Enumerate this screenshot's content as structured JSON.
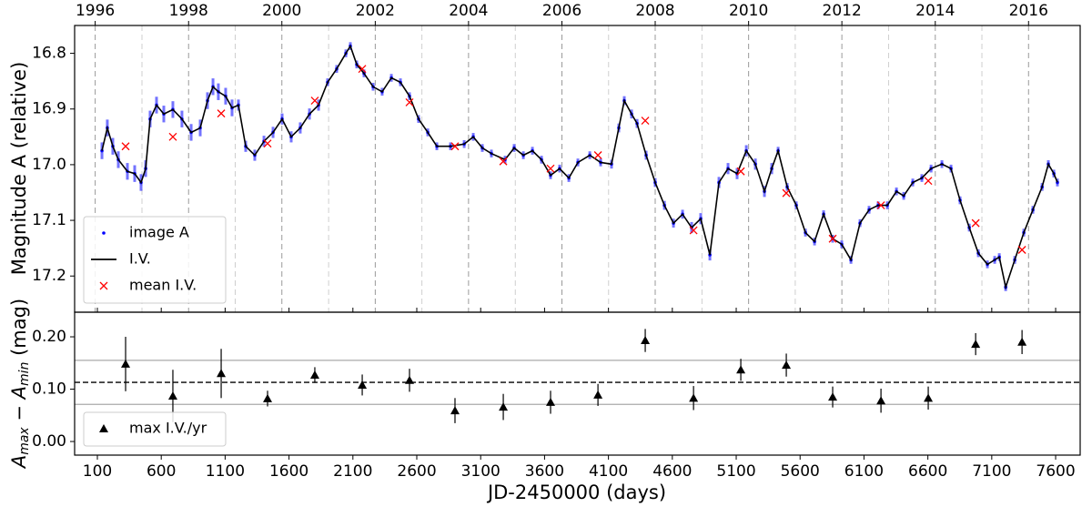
{
  "chart_data": [
    {
      "type": "line",
      "ylabel": "Magnitude A (relative)",
      "xlim": [
        -78,
        7792
      ],
      "ylim": [
        17.265,
        16.75
      ],
      "yticks": [
        16.8,
        16.9,
        {
          "value": 17.0,
          "label": "17.0"
        },
        17.1,
        17.2
      ],
      "x2ticks": [
        {
          "value": 83,
          "label": "1996"
        },
        {
          "value": 814,
          "label": "1998"
        },
        {
          "value": 1544,
          "label": "2000"
        },
        {
          "value": 2275,
          "label": "2002"
        },
        {
          "value": 3005,
          "label": "2004"
        },
        {
          "value": 3736,
          "label": "2006"
        },
        {
          "value": 4466,
          "label": "2008"
        },
        {
          "value": 5197,
          "label": "2010"
        },
        {
          "value": 5927,
          "label": "2012"
        },
        {
          "value": 6658,
          "label": "2014"
        },
        {
          "value": 7388,
          "label": "2016"
        }
      ],
      "year_lines": [
        83,
        449,
        814,
        1179,
        1544,
        1910,
        2275,
        2640,
        3005,
        3371,
        3736,
        4101,
        4466,
        4832,
        5197,
        5562,
        5927,
        6293,
        6658,
        7023,
        7388
      ],
      "legend": "lower left",
      "series": [
        {
          "name": "image A",
          "color": "#0000ff",
          "style": "points",
          "x": [
            136,
            178,
            221,
            264,
            335,
            392,
            442,
            478,
            513,
            563,
            620,
            691,
            762,
            834,
            905,
            962,
            1005,
            1047,
            1104,
            1154,
            1204,
            1261,
            1332,
            1404,
            1475,
            1546,
            1617,
            1688,
            1760,
            1831,
            1902,
            1973,
            2045,
            2080,
            2130,
            2187,
            2258,
            2329,
            2401,
            2472,
            2543,
            2614,
            2686,
            2757,
            2864,
            2971,
            3042,
            3113,
            3184,
            3291,
            3362,
            3434,
            3505,
            3576,
            3647,
            3718,
            3790,
            3861,
            3954,
            4039,
            4124,
            4181,
            4224,
            4281,
            4324,
            4395,
            4466,
            4538,
            4609,
            4680,
            4751,
            4822,
            4894,
            4965,
            5036,
            5107,
            5179,
            5250,
            5321,
            5378,
            5428,
            5499,
            5570,
            5642,
            5713,
            5784,
            5855,
            5926,
            5998,
            6069,
            6140,
            6211,
            6283,
            6354,
            6411,
            6482,
            6553,
            6625,
            6710,
            6781,
            6852,
            6924,
            6995,
            7066,
            7123,
            7159,
            7209,
            7280,
            7351,
            7422,
            7494,
            7543,
            7586,
            7614
          ],
          "values": [
            16.975,
            16.934,
            16.967,
            16.991,
            17.012,
            17.016,
            17.032,
            17.007,
            16.918,
            16.893,
            16.909,
            16.901,
            16.918,
            16.942,
            16.934,
            16.885,
            16.86,
            16.869,
            16.877,
            16.898,
            16.893,
            16.967,
            16.983,
            16.958,
            16.942,
            16.918,
            16.95,
            16.934,
            16.909,
            16.893,
            16.852,
            16.828,
            16.8,
            16.787,
            16.82,
            16.836,
            16.86,
            16.869,
            16.844,
            16.852,
            16.877,
            16.918,
            16.942,
            16.967,
            16.967,
            16.963,
            16.95,
            16.97,
            16.98,
            16.991,
            16.97,
            16.983,
            16.975,
            16.991,
            17.019,
            17.007,
            17.024,
            16.996,
            16.983,
            16.996,
            16.999,
            16.934,
            16.885,
            16.909,
            16.926,
            16.983,
            17.032,
            17.073,
            17.105,
            17.089,
            17.113,
            17.097,
            17.162,
            17.032,
            17.007,
            17.016,
            16.975,
            16.999,
            17.048,
            17.007,
            16.975,
            17.04,
            17.073,
            17.122,
            17.138,
            17.089,
            17.133,
            17.143,
            17.171,
            17.105,
            17.081,
            17.073,
            17.073,
            17.048,
            17.056,
            17.032,
            17.024,
            17.007,
            16.999,
            17.007,
            17.064,
            17.113,
            17.159,
            17.179,
            17.171,
            17.166,
            17.22,
            17.171,
            17.122,
            17.081,
            17.04,
            16.999,
            17.016,
            17.032
          ],
          "errors": [
            0.015,
            0.015,
            0.015,
            0.015,
            0.015,
            0.015,
            0.015,
            0.015,
            0.015,
            0.015,
            0.015,
            0.015,
            0.015,
            0.015,
            0.015,
            0.015,
            0.015,
            0.015,
            0.015,
            0.015,
            0.01,
            0.01,
            0.01,
            0.01,
            0.01,
            0.01,
            0.01,
            0.01,
            0.01,
            0.01,
            0.007,
            0.007,
            0.007,
            0.007,
            0.007,
            0.007,
            0.007,
            0.007,
            0.007,
            0.007,
            0.007,
            0.007,
            0.007,
            0.007,
            0.007,
            0.007,
            0.007,
            0.007,
            0.007,
            0.007,
            0.007,
            0.007,
            0.007,
            0.007,
            0.007,
            0.007,
            0.007,
            0.007,
            0.007,
            0.007,
            0.008,
            0.008,
            0.008,
            0.008,
            0.008,
            0.008,
            0.008,
            0.008,
            0.008,
            0.008,
            0.01,
            0.01,
            0.01,
            0.01,
            0.01,
            0.01,
            0.01,
            0.01,
            0.01,
            0.01,
            0.007,
            0.007,
            0.007,
            0.007,
            0.007,
            0.007,
            0.007,
            0.007,
            0.007,
            0.007,
            0.007,
            0.007,
            0.007,
            0.007,
            0.007,
            0.007,
            0.007,
            0.007,
            0.007,
            0.007,
            0.007,
            0.007,
            0.007,
            0.007,
            0.007,
            0.007,
            0.007,
            0.007,
            0.007,
            0.007,
            0.007,
            0.007,
            0.007,
            0.007
          ]
        },
        {
          "name": "I.V.",
          "color": "#000000",
          "style": "line",
          "x": [
            136,
            178,
            221,
            264,
            335,
            392,
            442,
            478,
            513,
            563,
            620,
            691,
            762,
            834,
            905,
            962,
            1005,
            1047,
            1104,
            1154,
            1204,
            1261,
            1332,
            1404,
            1475,
            1546,
            1617,
            1688,
            1760,
            1831,
            1902,
            1973,
            2045,
            2080,
            2130,
            2187,
            2258,
            2329,
            2401,
            2472,
            2543,
            2614,
            2686,
            2757,
            2864,
            2971,
            3042,
            3113,
            3184,
            3291,
            3362,
            3434,
            3505,
            3576,
            3647,
            3718,
            3790,
            3861,
            3954,
            4039,
            4124,
            4181,
            4224,
            4281,
            4324,
            4395,
            4466,
            4538,
            4609,
            4680,
            4751,
            4822,
            4894,
            4965,
            5036,
            5107,
            5179,
            5250,
            5321,
            5378,
            5428,
            5499,
            5570,
            5642,
            5713,
            5784,
            5855,
            5926,
            5998,
            6069,
            6140,
            6211,
            6283,
            6354,
            6411,
            6482,
            6553,
            6625,
            6710,
            6781,
            6852,
            6924,
            6995,
            7066,
            7123,
            7159,
            7209,
            7280,
            7351,
            7422,
            7494,
            7543,
            7586,
            7614
          ],
          "values": [
            16.975,
            16.934,
            16.967,
            16.991,
            17.012,
            17.016,
            17.032,
            17.007,
            16.918,
            16.893,
            16.909,
            16.901,
            16.918,
            16.942,
            16.934,
            16.885,
            16.86,
            16.869,
            16.877,
            16.898,
            16.893,
            16.967,
            16.983,
            16.958,
            16.942,
            16.918,
            16.95,
            16.934,
            16.909,
            16.893,
            16.852,
            16.828,
            16.8,
            16.787,
            16.82,
            16.836,
            16.86,
            16.869,
            16.844,
            16.852,
            16.877,
            16.918,
            16.942,
            16.967,
            16.967,
            16.963,
            16.95,
            16.97,
            16.98,
            16.991,
            16.97,
            16.983,
            16.975,
            16.991,
            17.019,
            17.007,
            17.024,
            16.996,
            16.983,
            16.996,
            16.999,
            16.934,
            16.885,
            16.909,
            16.926,
            16.983,
            17.032,
            17.073,
            17.105,
            17.089,
            17.113,
            17.097,
            17.162,
            17.032,
            17.007,
            17.016,
            16.975,
            16.999,
            17.048,
            17.007,
            16.975,
            17.04,
            17.073,
            17.122,
            17.138,
            17.089,
            17.133,
            17.143,
            17.171,
            17.105,
            17.081,
            17.073,
            17.073,
            17.048,
            17.056,
            17.032,
            17.024,
            17.007,
            16.999,
            17.007,
            17.064,
            17.113,
            17.159,
            17.179,
            17.171,
            17.166,
            17.22,
            17.171,
            17.122,
            17.081,
            17.04,
            16.999,
            17.016,
            17.032
          ]
        },
        {
          "name": "mean I.V.",
          "color": "#ff0000",
          "style": "cross",
          "x": [
            321,
            691,
            1069,
            1432,
            1802,
            2173,
            2543,
            2899,
            3277,
            3647,
            4018,
            4388,
            4766,
            5136,
            5492,
            5855,
            6233,
            6603,
            6974,
            7337
          ],
          "values": [
            16.967,
            16.95,
            16.908,
            16.962,
            16.885,
            16.828,
            16.888,
            16.967,
            16.994,
            17.007,
            16.983,
            16.921,
            17.118,
            17.012,
            17.051,
            17.133,
            17.073,
            17.029,
            17.105,
            17.153
          ]
        }
      ]
    },
    {
      "type": "errorbar",
      "xlabel": "JD-2450000 (days)",
      "ylabel": [
        "A",
        "max",
        " − A",
        "min",
        " (mag)"
      ],
      "xlim": [
        -78,
        7792
      ],
      "ylim": [
        -0.026,
        0.247
      ],
      "xticks": [
        100,
        600,
        1100,
        1600,
        2100,
        2600,
        3100,
        3600,
        4100,
        4600,
        5100,
        5600,
        6100,
        6600,
        7100,
        7600
      ],
      "yticks": [
        {
          "value": 0,
          "label": "0.00"
        },
        {
          "value": 0.1,
          "label": "0.10"
        },
        {
          "value": 0.2,
          "label": "0.20"
        }
      ],
      "hlines": [
        {
          "value": 0.113,
          "style": "dashed"
        },
        {
          "value": 0.155,
          "style": "solid"
        },
        {
          "value": 0.071,
          "style": "solid"
        }
      ],
      "legend": "lower left",
      "series": [
        {
          "name": "max I.V./yr",
          "color": "#000000",
          "x": [
            321,
            691,
            1069,
            1432,
            1802,
            2173,
            2543,
            2899,
            3277,
            3647,
            4018,
            4388,
            4766,
            5136,
            5492,
            5855,
            6233,
            6603,
            6974,
            7337
          ],
          "values": [
            0.148,
            0.087,
            0.13,
            0.082,
            0.127,
            0.108,
            0.117,
            0.059,
            0.066,
            0.075,
            0.089,
            0.193,
            0.083,
            0.137,
            0.146,
            0.085,
            0.078,
            0.083,
            0.186,
            0.19
          ],
          "errors": [
            0.052,
            0.05,
            0.047,
            0.015,
            0.015,
            0.02,
            0.022,
            0.024,
            0.025,
            0.022,
            0.021,
            0.022,
            0.023,
            0.021,
            0.022,
            0.02,
            0.023,
            0.022,
            0.021,
            0.023
          ]
        }
      ]
    }
  ]
}
